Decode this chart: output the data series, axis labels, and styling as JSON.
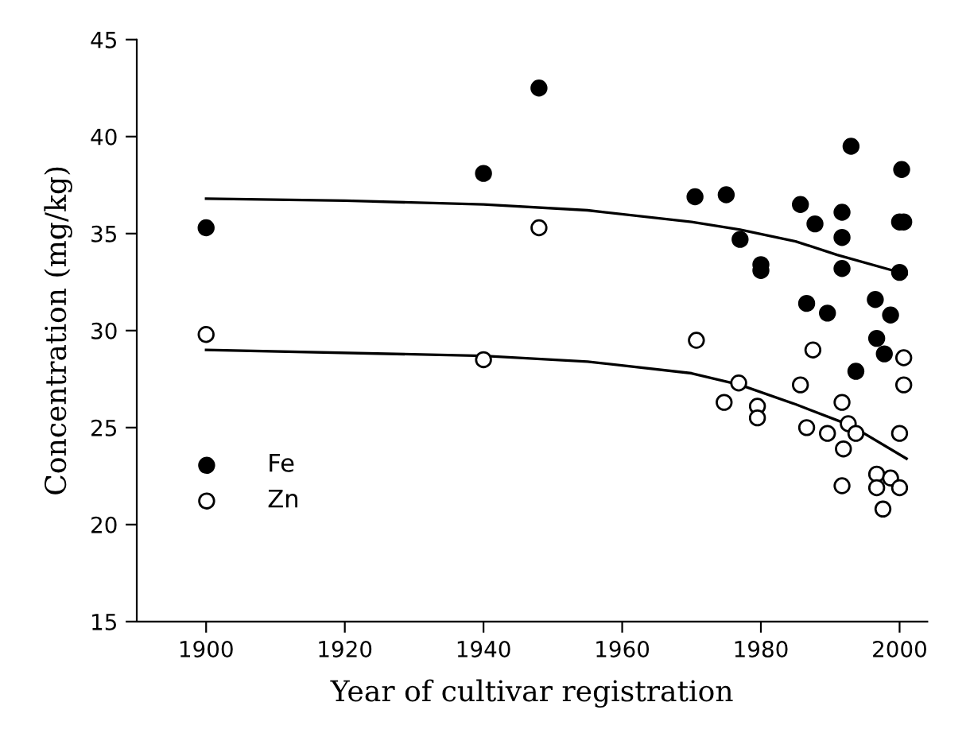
{
  "chart_data": {
    "type": "scatter",
    "xlabel": "Year of cultivar registration",
    "ylabel": "Concentration (mg/kg)",
    "xlim": [
      1890,
      2004
    ],
    "xticks": [
      1900,
      1920,
      1940,
      1960,
      1980,
      2000
    ],
    "ylim": [
      15,
      45
    ],
    "yticks": [
      15,
      20,
      25,
      30,
      35,
      40,
      45
    ],
    "grid": false,
    "legend": "bottom left",
    "marker": "circle",
    "series": [
      {
        "name": "Fe",
        "color": "#000000",
        "x": [
          1900,
          1940,
          1948,
          1970.5,
          1975,
          1977,
          1980,
          1980,
          1985.7,
          1987.8,
          1991.7,
          1991.7,
          1991.7,
          1993,
          2000.3,
          2000,
          2000.6,
          2000,
          1986.6,
          1989.6,
          1996.5,
          1998.7,
          1996.7,
          1997.8,
          1993.7
        ],
        "values": [
          35.3,
          38.1,
          42.5,
          36.9,
          37.0,
          34.7,
          33.4,
          33.1,
          36.5,
          35.5,
          36.1,
          34.8,
          33.2,
          39.5,
          38.3,
          35.6,
          35.6,
          33.0,
          31.4,
          30.9,
          31.6,
          30.8,
          29.6,
          28.8,
          27.9
        ]
      },
      {
        "name": "Zn",
        "color": "#ffffff",
        "x": [
          1900,
          1940,
          1948,
          1970.7,
          1974.7,
          1976.8,
          1979.5,
          1979.5,
          1985.7,
          1986.6,
          1987.5,
          1989.6,
          1991.7,
          1991.9,
          1991.7,
          1992.6,
          1993.7,
          1996.7,
          1996.7,
          1997.6,
          1998.7,
          2000,
          2000,
          2000.6,
          2000.6
        ],
        "values": [
          29.8,
          28.5,
          35.3,
          29.5,
          26.3,
          27.3,
          26.1,
          25.5,
          27.2,
          25.0,
          29.0,
          24.7,
          26.3,
          23.9,
          22.0,
          25.2,
          24.7,
          22.6,
          21.9,
          20.8,
          22.4,
          21.9,
          24.7,
          27.2,
          28.6
        ]
      },
      {
        "type": "line",
        "marker": "none",
        "color": "#000000",
        "x": [
          1900,
          1920,
          1940,
          1955,
          1970,
          1977,
          1985,
          1991,
          2001
        ],
        "values": [
          36.8,
          36.7,
          36.5,
          36.2,
          35.6,
          35.2,
          34.6,
          33.9,
          32.9
        ]
      },
      {
        "type": "line",
        "marker": "none",
        "color": "#000000",
        "x": [
          1900,
          1940,
          1955,
          1970,
          1977,
          1985,
          1993,
          2001
        ],
        "values": [
          29.0,
          28.7,
          28.4,
          27.8,
          27.2,
          26.2,
          25.1,
          23.4
        ]
      }
    ]
  }
}
